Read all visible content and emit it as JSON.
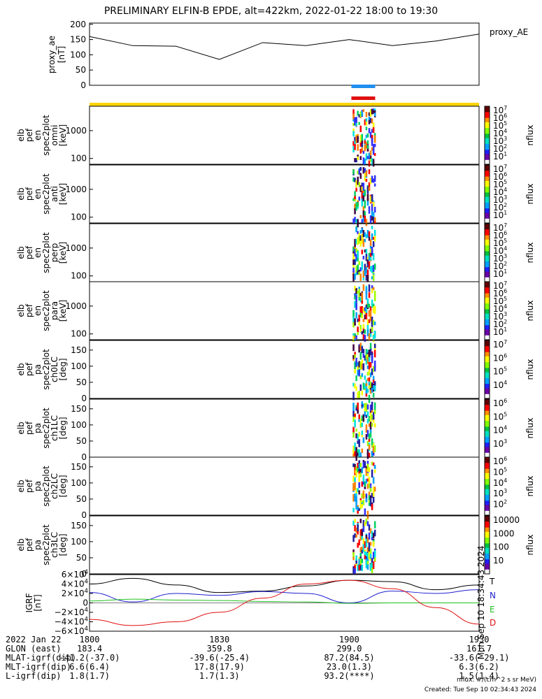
{
  "title": "PRELIMINARY ELFIN-B EPDE, alt=422km, 2022-01-22 18:00 to 19:30",
  "proxy_panel": {
    "ylabel": [
      "proxy_ae",
      "[nT]"
    ],
    "legend": "proxy_AE",
    "yticks": [
      "200",
      "150",
      "100",
      "50",
      "0"
    ]
  },
  "spectrogram_panels": [
    {
      "ylabel": [
        "elb",
        "pef",
        "en",
        "spec2plot",
        "omni",
        "[keV]"
      ],
      "yticks": [
        "1000",
        "100"
      ],
      "cbar_ticks": [
        "10^7",
        "10^6",
        "10^5",
        "10^4",
        "10^3",
        "10^2",
        "10^1"
      ],
      "cbar_label": "nflux"
    },
    {
      "ylabel": [
        "elb",
        "pef",
        "en",
        "spec2plot",
        "anti",
        "[keV]"
      ],
      "yticks": [
        "1000",
        "100"
      ],
      "cbar_ticks": [
        "10^7",
        "10^6",
        "10^5",
        "10^4",
        "10^3",
        "10^2",
        "10^1"
      ],
      "cbar_label": "nflux"
    },
    {
      "ylabel": [
        "elb",
        "pef",
        "en",
        "spec2plot",
        "perp",
        "[keV]"
      ],
      "yticks": [
        "1000",
        "100"
      ],
      "cbar_ticks": [
        "10^7",
        "10^6",
        "10^5",
        "10^4",
        "10^3",
        "10^2",
        "10^1"
      ],
      "cbar_label": "nflux"
    },
    {
      "ylabel": [
        "elb",
        "pef",
        "en",
        "spec2plot",
        "para",
        "[keV]"
      ],
      "yticks": [
        "1000",
        "100"
      ],
      "cbar_ticks": [
        "10^7",
        "10^6",
        "10^5",
        "10^4",
        "10^3",
        "10^2",
        "10^1"
      ],
      "cbar_label": "nflux"
    },
    {
      "ylabel": [
        "elb",
        "pef",
        "pa",
        "spec2plot",
        "ch0LC",
        "[deg]"
      ],
      "yticks": [
        "150",
        "100",
        "50",
        "0"
      ],
      "cbar_ticks": [
        "10^7",
        "10^6",
        "10^5",
        "10^4"
      ],
      "cbar_label": "nflux"
    },
    {
      "ylabel": [
        "elb",
        "pef",
        "pa",
        "spec2plot",
        "ch1LC",
        "[deg]"
      ],
      "yticks": [
        "150",
        "100",
        "50",
        "0"
      ],
      "cbar_ticks": [
        "10^6",
        "10^5",
        "10^4",
        "10^3"
      ],
      "cbar_label": "nflux"
    },
    {
      "ylabel": [
        "elb",
        "pef",
        "pa",
        "spec2plot",
        "ch2LC",
        "[deg]"
      ],
      "yticks": [
        "150",
        "100",
        "50",
        "0"
      ],
      "cbar_ticks": [
        "10^6",
        "10^5",
        "10^4",
        "10^3",
        "10^2"
      ],
      "cbar_label": "nflux"
    },
    {
      "ylabel": [
        "elb",
        "pef",
        "pa",
        "spec2plot",
        "ch3LC",
        "[deg]"
      ],
      "yticks": [
        "150",
        "100",
        "50",
        "0"
      ],
      "cbar_ticks": [
        "10000",
        "1000",
        "100",
        "10"
      ],
      "cbar_label": "nflux"
    }
  ],
  "igrf_panel": {
    "ylabel": [
      "IGRF",
      "[nT]"
    ],
    "yticks": [
      "6×10^4",
      "4×10^4",
      "2×10^4",
      "0",
      "−2×10^4",
      "−4×10^4",
      "−6×10^4"
    ],
    "legend": [
      {
        "label": "T",
        "color": "#000000"
      },
      {
        "label": "N",
        "color": "#1f1fd0"
      },
      {
        "label": "E",
        "color": "#22c022"
      },
      {
        "label": "D",
        "color": "#e01010"
      }
    ],
    "side_note": "Mon Sep 10 18:34:43 2024"
  },
  "footer": {
    "rows": [
      {
        "label": "2022 Jan 22",
        "values": [
          "1800",
          "1830",
          "1900",
          "1930"
        ]
      },
      {
        "label": "GLON (east)",
        "values": [
          "183.4",
          "359.8",
          "299.0",
          "161.7"
        ]
      },
      {
        "label": "MLAT-igrf(dip)",
        "values": [
          "-41.2(-37.0)",
          "-39.6(-25.4)",
          "87.2(84.5)",
          "-33.6(-29.1)"
        ]
      },
      {
        "label": "MLT-igrf(dip)",
        "values": [
          "6.6(6.4)",
          "17.8(17.9)",
          "23.0(1.3)",
          "6.3(6.2)"
        ]
      },
      {
        "label": "L-igrf(dip)",
        "values": [
          "1.8(1.7)",
          "1.7(1.3)",
          "93.2(****)",
          "1.5(1.4)"
        ]
      }
    ],
    "units_note": "nflux: #/(cm^2 s sr MeV)",
    "created": "Created: Tue Sep 10 02:34:43 2024"
  },
  "chart_data": {
    "type": "line",
    "title": "PRELIMINARY ELFIN-B EPDE, alt=422km, 2022-01-22 18:00 to 19:30",
    "x_minutes": [
      0,
      10,
      20,
      30,
      40,
      50,
      60,
      70,
      80,
      90
    ],
    "proxy_ae": [
      160,
      130,
      128,
      85,
      140,
      130,
      150,
      130,
      145,
      168
    ],
    "proxy_ae_ylim": [
      0,
      200
    ],
    "igrf": {
      "x_minutes": [
        0,
        10,
        20,
        30,
        40,
        50,
        60,
        70,
        80,
        90
      ],
      "series": [
        {
          "name": "T",
          "values": [
            40000,
            52000,
            38000,
            22000,
            25000,
            36000,
            48000,
            45000,
            28000,
            38000
          ]
        },
        {
          "name": "N",
          "values": [
            22000,
            2000,
            20000,
            16000,
            24000,
            20000,
            0,
            25000,
            20000,
            28000
          ]
        },
        {
          "name": "E",
          "values": [
            4000,
            8000,
            6000,
            5000,
            3000,
            2000,
            -1000,
            0,
            0,
            0
          ]
        },
        {
          "name": "D",
          "values": [
            -35000,
            -48000,
            -40000,
            -20000,
            10000,
            40000,
            48000,
            30000,
            -10000,
            -45000
          ]
        }
      ],
      "ylim": [
        -60000,
        60000
      ]
    }
  }
}
